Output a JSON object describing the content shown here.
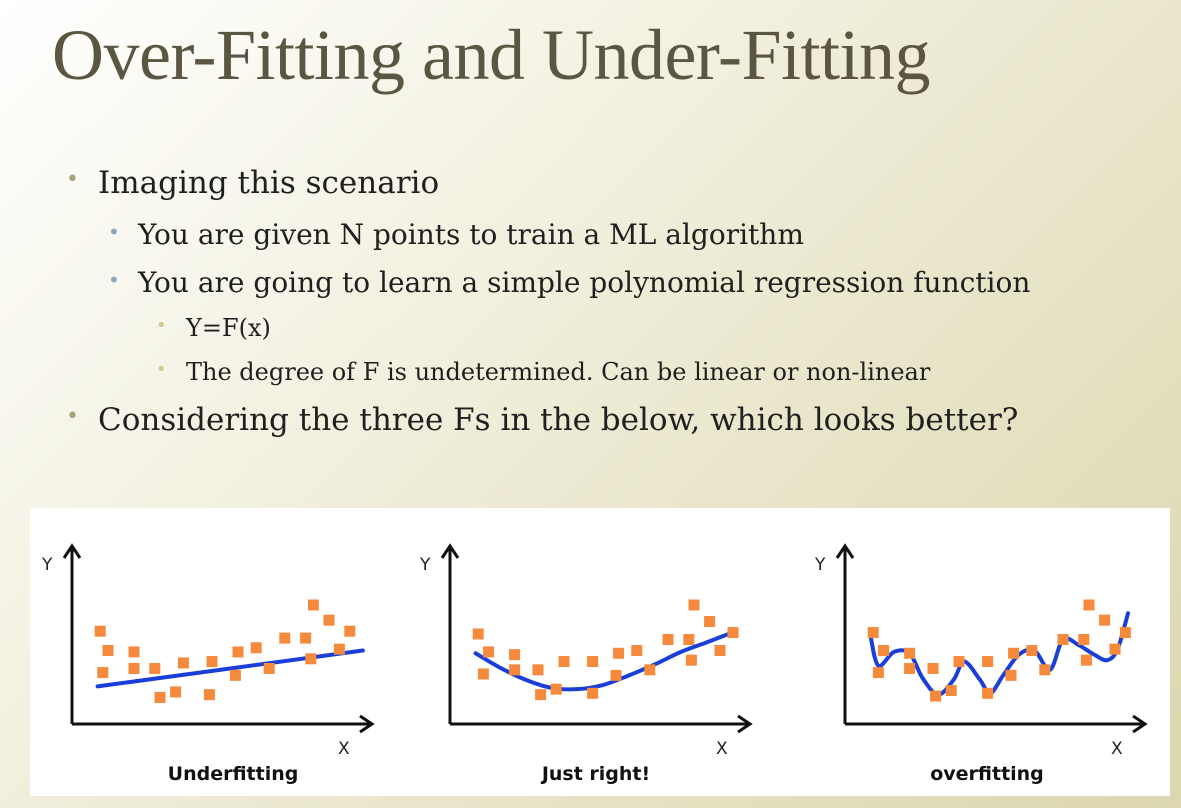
{
  "slide": {
    "title": "Over-Fitting and Under-Fitting",
    "bullets": {
      "b1": "Imaging this scenario",
      "b1_1": "You are given N points to train a ML algorithm",
      "b1_2": "You are going to learn a simple polynomial regression function",
      "b1_2_1": "Y=F(x)",
      "b1_2_2": "The degree of F is undetermined. Can be linear or non-linear",
      "b2": "Considering the three Fs in the below, which looks better?"
    }
  },
  "colors": {
    "points": "#f58a3c",
    "curve": "#1a3ed8",
    "axes": "#111111"
  },
  "chart_data": [
    {
      "type": "scatter",
      "title": "Underfitting",
      "xlabel": "X",
      "ylabel": "Y",
      "xlim": [
        0,
        10
      ],
      "ylim": [
        0,
        10
      ],
      "points": [
        {
          "x": 0.7,
          "y": 6.0
        },
        {
          "x": 1.0,
          "y": 4.6
        },
        {
          "x": 0.8,
          "y": 3.0
        },
        {
          "x": 2.0,
          "y": 4.5
        },
        {
          "x": 2.0,
          "y": 3.3
        },
        {
          "x": 2.8,
          "y": 3.3
        },
        {
          "x": 3.0,
          "y": 1.2
        },
        {
          "x": 3.6,
          "y": 1.6
        },
        {
          "x": 3.9,
          "y": 3.7
        },
        {
          "x": 4.9,
          "y": 1.4
        },
        {
          "x": 5.0,
          "y": 3.8
        },
        {
          "x": 5.9,
          "y": 2.8
        },
        {
          "x": 6.0,
          "y": 4.5
        },
        {
          "x": 6.7,
          "y": 4.8
        },
        {
          "x": 7.2,
          "y": 3.3
        },
        {
          "x": 7.8,
          "y": 5.5
        },
        {
          "x": 8.6,
          "y": 5.5
        },
        {
          "x": 8.8,
          "y": 4.0
        },
        {
          "x": 8.9,
          "y": 7.9
        },
        {
          "x": 9.5,
          "y": 6.8
        },
        {
          "x": 9.9,
          "y": 4.7
        },
        {
          "x": 10.3,
          "y": 6.0
        }
      ],
      "fit": [
        {
          "x": 0.6,
          "y": 2.0
        },
        {
          "x": 10.8,
          "y": 4.6
        }
      ]
    },
    {
      "type": "scatter",
      "title": "Just right!",
      "xlabel": "X",
      "ylabel": "Y",
      "xlim": [
        0,
        10
      ],
      "ylim": [
        0,
        10
      ],
      "points": [
        {
          "x": 0.7,
          "y": 5.8
        },
        {
          "x": 1.1,
          "y": 4.5
        },
        {
          "x": 0.9,
          "y": 2.9
        },
        {
          "x": 2.1,
          "y": 4.3
        },
        {
          "x": 2.1,
          "y": 3.2
        },
        {
          "x": 3.0,
          "y": 3.2
        },
        {
          "x": 3.1,
          "y": 1.4
        },
        {
          "x": 3.7,
          "y": 1.8
        },
        {
          "x": 4.0,
          "y": 3.8
        },
        {
          "x": 5.1,
          "y": 1.5
        },
        {
          "x": 5.1,
          "y": 3.8
        },
        {
          "x": 6.0,
          "y": 2.8
        },
        {
          "x": 6.1,
          "y": 4.4
        },
        {
          "x": 6.8,
          "y": 4.6
        },
        {
          "x": 7.3,
          "y": 3.2
        },
        {
          "x": 8.0,
          "y": 5.4
        },
        {
          "x": 8.8,
          "y": 5.4
        },
        {
          "x": 8.9,
          "y": 3.9
        },
        {
          "x": 9.0,
          "y": 7.9
        },
        {
          "x": 9.6,
          "y": 6.7
        },
        {
          "x": 10.0,
          "y": 4.6
        },
        {
          "x": 10.5,
          "y": 5.9
        }
      ],
      "fit": [
        {
          "x": 0.6,
          "y": 4.4
        },
        {
          "x": 1.5,
          "y": 3.4
        },
        {
          "x": 2.5,
          "y": 2.5
        },
        {
          "x": 3.5,
          "y": 1.9
        },
        {
          "x": 4.5,
          "y": 1.8
        },
        {
          "x": 5.5,
          "y": 2.1
        },
        {
          "x": 6.5,
          "y": 2.8
        },
        {
          "x": 7.5,
          "y": 3.6
        },
        {
          "x": 8.5,
          "y": 4.5
        },
        {
          "x": 9.5,
          "y": 5.2
        },
        {
          "x": 10.6,
          "y": 6.0
        }
      ]
    },
    {
      "type": "scatter",
      "title": "overfitting",
      "xlabel": "X",
      "ylabel": "Y",
      "xlim": [
        0,
        10
      ],
      "ylim": [
        0,
        10
      ],
      "points": [
        {
          "x": 0.7,
          "y": 5.9
        },
        {
          "x": 1.1,
          "y": 4.6
        },
        {
          "x": 0.9,
          "y": 3.0
        },
        {
          "x": 2.1,
          "y": 4.4
        },
        {
          "x": 2.1,
          "y": 3.3
        },
        {
          "x": 3.0,
          "y": 3.3
        },
        {
          "x": 3.1,
          "y": 1.3
        },
        {
          "x": 3.7,
          "y": 1.7
        },
        {
          "x": 4.0,
          "y": 3.8
        },
        {
          "x": 5.1,
          "y": 1.5
        },
        {
          "x": 5.1,
          "y": 3.8
        },
        {
          "x": 6.0,
          "y": 2.8
        },
        {
          "x": 6.1,
          "y": 4.4
        },
        {
          "x": 6.8,
          "y": 4.6
        },
        {
          "x": 7.3,
          "y": 3.2
        },
        {
          "x": 8.0,
          "y": 5.4
        },
        {
          "x": 8.8,
          "y": 5.4
        },
        {
          "x": 8.9,
          "y": 3.9
        },
        {
          "x": 9.0,
          "y": 7.9
        },
        {
          "x": 9.6,
          "y": 6.8
        },
        {
          "x": 10.0,
          "y": 4.7
        },
        {
          "x": 10.4,
          "y": 5.9
        }
      ],
      "fit": [
        {
          "x": 0.6,
          "y": 5.6
        },
        {
          "x": 0.9,
          "y": 3.5
        },
        {
          "x": 1.5,
          "y": 4.5
        },
        {
          "x": 2.1,
          "y": 4.4
        },
        {
          "x": 2.6,
          "y": 2.6
        },
        {
          "x": 3.2,
          "y": 1.4
        },
        {
          "x": 3.8,
          "y": 2.5
        },
        {
          "x": 4.2,
          "y": 3.8
        },
        {
          "x": 4.8,
          "y": 2.5
        },
        {
          "x": 5.2,
          "y": 1.5
        },
        {
          "x": 5.7,
          "y": 2.8
        },
        {
          "x": 6.3,
          "y": 4.3
        },
        {
          "x": 6.9,
          "y": 4.6
        },
        {
          "x": 7.5,
          "y": 3.2
        },
        {
          "x": 8.0,
          "y": 5.4
        },
        {
          "x": 8.6,
          "y": 5.0
        },
        {
          "x": 9.2,
          "y": 4.3
        },
        {
          "x": 9.7,
          "y": 3.9
        },
        {
          "x": 10.1,
          "y": 4.7
        },
        {
          "x": 10.5,
          "y": 7.3
        }
      ]
    }
  ]
}
